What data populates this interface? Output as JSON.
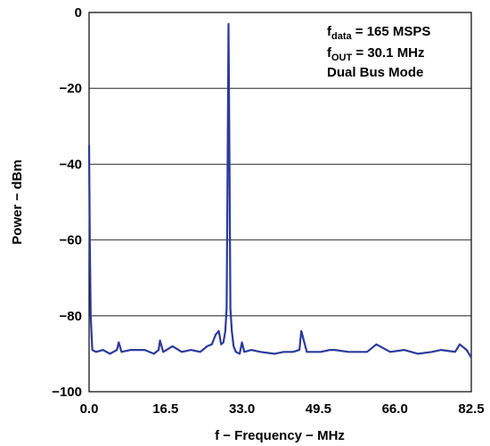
{
  "chart_data": {
    "type": "line",
    "xlabel": "f − Frequency − MHz",
    "ylabel": "Power − dBm",
    "xlim": [
      0,
      82.5
    ],
    "ylim": [
      -100,
      0
    ],
    "x_ticks": [
      "0.0",
      "16.5",
      "33.0",
      "49.5",
      "66.0",
      "82.5"
    ],
    "y_ticks": [
      "0",
      "−20",
      "−40",
      "−60",
      "−80",
      "−100"
    ],
    "grid": "horizontal",
    "series_color": "#2b3a9b",
    "annotations": [
      {
        "main": "f",
        "sub": "data",
        "rest": " = 165 MSPS"
      },
      {
        "main": "f",
        "sub": "OUT",
        "rest": " = 30.1 MHz"
      },
      {
        "main": "Dual Bus Mode",
        "sub": "",
        "rest": ""
      }
    ],
    "series": [
      {
        "x": [
          0.0,
          0.15,
          0.35,
          0.7,
          1.5,
          3.0,
          4.5,
          6.0,
          6.4,
          7.0,
          9.0,
          12.0,
          14.0,
          15.0,
          15.3,
          16.0,
          18.0,
          20.0,
          22.0,
          24.0,
          25.5,
          26.5,
          27.3,
          28.0,
          28.5,
          29.0,
          29.4,
          29.7,
          29.9,
          30.1,
          30.3,
          30.5,
          30.8,
          31.2,
          31.7,
          32.5,
          33.0,
          33.5,
          35.0,
          37.0,
          40.0,
          42.0,
          44.0,
          45.4,
          45.8,
          47.0,
          50.0,
          52.0,
          53.0,
          56.0,
          60.0,
          62.0,
          65.0,
          68.0,
          71.0,
          74.0,
          76.0,
          79.0,
          80.0,
          81.5,
          82.5
        ],
        "y": [
          -35,
          -60,
          -80,
          -89,
          -89.5,
          -89,
          -90,
          -89,
          -87,
          -89.5,
          -89,
          -89,
          -90,
          -89,
          -86.5,
          -89.5,
          -88,
          -89.5,
          -89,
          -89.5,
          -88,
          -87.5,
          -85,
          -84,
          -87.5,
          -87,
          -84,
          -78,
          -40,
          -3,
          -40,
          -78,
          -84,
          -88,
          -89.5,
          -90,
          -87,
          -89.5,
          -89,
          -89.5,
          -90,
          -89.5,
          -89.5,
          -89,
          -84,
          -89.5,
          -89.5,
          -89,
          -89,
          -89.5,
          -89.5,
          -87.5,
          -89.5,
          -89,
          -90,
          -89.5,
          -89,
          -89.5,
          -87.5,
          -89,
          -91
        ]
      }
    ]
  }
}
